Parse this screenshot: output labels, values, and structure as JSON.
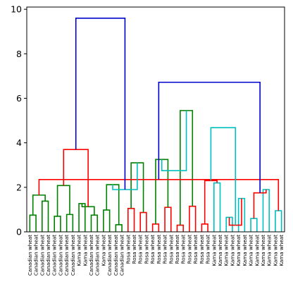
{
  "chart_data": {
    "type": "dendrogram",
    "title": "",
    "xlabel": "",
    "ylabel": "",
    "ylim": [
      0,
      10.1
    ],
    "yticks": [
      0,
      2,
      4,
      6,
      8,
      10
    ],
    "grid": false,
    "leaf_labels": [
      "Canadian wheat",
      "Canadian wheat",
      "Canadian wheat",
      "Canadian wheat",
      "Canadian wheat",
      "Canadian wheat",
      "Canadian wheat",
      "Canadian wheat",
      "Kama wheat",
      "Kama wheat",
      "Canadian wheat",
      "Canadian wheat",
      "Kama wheat",
      "Canadian wheat",
      "Canadian wheat",
      "Canadian wheat",
      "Rosa wheat",
      "Rosa wheat",
      "Rosa wheat",
      "Rosa wheat",
      "Rosa wheat",
      "Rosa wheat",
      "Rosa wheat",
      "Rosa wheat",
      "Rosa wheat",
      "Rosa wheat",
      "Rosa wheat",
      "Rosa wheat",
      "Rosa wheat",
      "Rosa wheat",
      "Kama wheat",
      "Kama wheat",
      "Kama wheat",
      "Kama wheat",
      "Kama wheat",
      "Kama wheat",
      "Kama wheat",
      "Kama wheat",
      "Kama wheat",
      "Kama wheat",
      "Kama wheat",
      "Kama wheat"
    ],
    "links": [
      {
        "a": 0,
        "b": 1,
        "h": 0.75,
        "color": "#008000"
      },
      {
        "a": 2,
        "b": 3,
        "h": 1.38,
        "color": "#008000"
      },
      {
        "a": 4,
        "b": 5,
        "h": 0.7,
        "color": "#008000"
      },
      {
        "a": 6,
        "b": 7,
        "h": 0.78,
        "color": "#008000"
      },
      {
        "a": 8,
        "b": 9,
        "h": 1.27,
        "color": "#008000"
      },
      {
        "a": 10,
        "b": 11,
        "h": 0.75,
        "color": "#008000"
      },
      {
        "a": 12,
        "b": 13,
        "h": 0.98,
        "color": "#008000"
      },
      {
        "a": 14,
        "b": 15,
        "h": 0.32,
        "color": "#008000"
      },
      {
        "a": 16,
        "b": 17,
        "h": 1.05,
        "color": "#ff0000"
      },
      {
        "a": 18,
        "b": 19,
        "h": 0.87,
        "color": "#ff0000"
      },
      {
        "a": 20,
        "b": 21,
        "h": 0.35,
        "color": "#ff0000"
      },
      {
        "a": 22,
        "b": 23,
        "h": 1.1,
        "color": "#ff0000"
      },
      {
        "a": 24,
        "b": 25,
        "h": 0.3,
        "color": "#ff0000"
      },
      {
        "a": 26,
        "b": 27,
        "h": 1.15,
        "color": "#ff0000"
      },
      {
        "a": 28,
        "b": 29,
        "h": 0.35,
        "color": "#ff0000"
      },
      {
        "a": 30,
        "b": 31,
        "h": 2.2,
        "color": "#00bfbf"
      },
      {
        "a": 32,
        "b": 33,
        "h": 0.65,
        "color": "#00bfbf"
      },
      {
        "a": 34,
        "b": 35,
        "h": 1.5,
        "color": "#00bfbf"
      },
      {
        "a": 36,
        "b": 37,
        "h": 0.6,
        "color": "#00bfbf"
      },
      {
        "a": 38,
        "b": 39,
        "h": 1.9,
        "color": "#00bfbf"
      },
      {
        "a": 40,
        "b": 41,
        "h": 0.95,
        "color": "#00bfbf"
      },
      {
        "a": 42,
        "b": 43,
        "h": 1.65,
        "color": "#008000"
      },
      {
        "a": 44,
        "b": 45,
        "h": 2.08,
        "color": "#008000"
      },
      {
        "a": 46,
        "b": 47,
        "h": 1.13,
        "color": "#008000"
      },
      {
        "a": 48,
        "b": 49,
        "h": 2.12,
        "color": "#008000"
      },
      {
        "a": 50,
        "b": 51,
        "h": 3.1,
        "color": "#008000"
      },
      {
        "a": 52,
        "b": 53,
        "h": 3.25,
        "color": "#008000"
      },
      {
        "a": 54,
        "b": 55,
        "h": 5.45,
        "color": "#008000"
      },
      {
        "a": 56,
        "b": 57,
        "h": 2.3,
        "color": "#ff0000"
      },
      {
        "a": 58,
        "b": 59,
        "h": 0.3,
        "color": "#ff0000"
      },
      {
        "a": 60,
        "b": 61,
        "h": 1.75,
        "color": "#ff0000"
      },
      {
        "a": 62,
        "b": 63,
        "h": 2.35,
        "color": "#ff0000"
      },
      {
        "a": 64,
        "b": 65,
        "h": 3.7,
        "color": "#ff0000"
      },
      {
        "a": 66,
        "b": 67,
        "h": 1.9,
        "color": "#00bfbf"
      },
      {
        "a": 68,
        "b": 69,
        "h": 2.75,
        "color": "#00bfbf"
      },
      {
        "a": 70,
        "b": 71,
        "h": 4.68,
        "color": "#00bfbf"
      },
      {
        "a": 72,
        "b": 73,
        "h": 6.72,
        "color": "#0000cc"
      },
      {
        "a": 74,
        "b": 75,
        "h": 9.6,
        "color": "#0000cc"
      }
    ]
  }
}
